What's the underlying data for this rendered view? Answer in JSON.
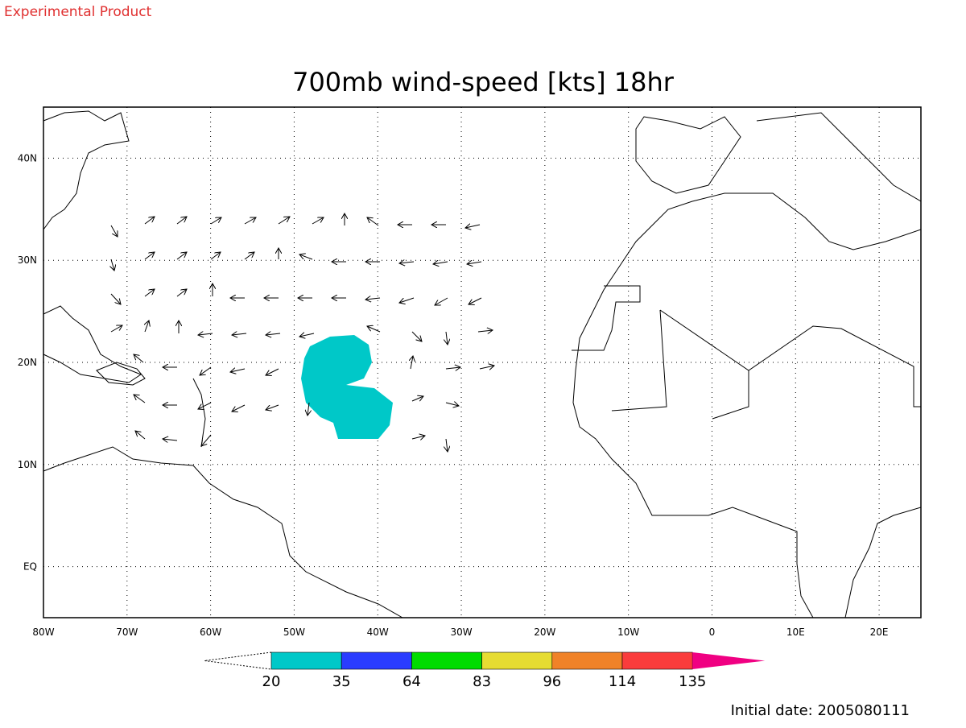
{
  "header": {
    "label": "Experimental Product",
    "title": "700mb wind-speed [kts] 18hr"
  },
  "map": {
    "xlim": [
      -80,
      25
    ],
    "ylim": [
      -5,
      45
    ],
    "xticks": [
      {
        "value": -80,
        "label": "80W"
      },
      {
        "value": -70,
        "label": "70W"
      },
      {
        "value": -60,
        "label": "60W"
      },
      {
        "value": -50,
        "label": "50W"
      },
      {
        "value": -40,
        "label": "40W"
      },
      {
        "value": -30,
        "label": "30W"
      },
      {
        "value": -20,
        "label": "20W"
      },
      {
        "value": -10,
        "label": "10W"
      },
      0,
      {
        "value": 10,
        "label": "10E"
      },
      {
        "value": 20,
        "label": "20E"
      }
    ],
    "yticks": [
      {
        "value": 40,
        "label": "40N"
      },
      {
        "value": 30,
        "label": "30N"
      },
      {
        "value": 20,
        "label": "20N"
      },
      {
        "value": 10,
        "label": "10N"
      },
      {
        "value": 0,
        "label": "EQ"
      }
    ],
    "grid": true
  },
  "colorbar": {
    "levels": [
      20,
      35,
      64,
      83,
      96,
      114,
      135
    ],
    "colors": [
      "#00c8c8",
      "#2a3cff",
      "#00dc00",
      "#e6dc32",
      "#f08228",
      "#fa3c3c",
      "#f00082"
    ]
  },
  "footer": {
    "initial_date": "Initial date: 2005080111"
  }
}
